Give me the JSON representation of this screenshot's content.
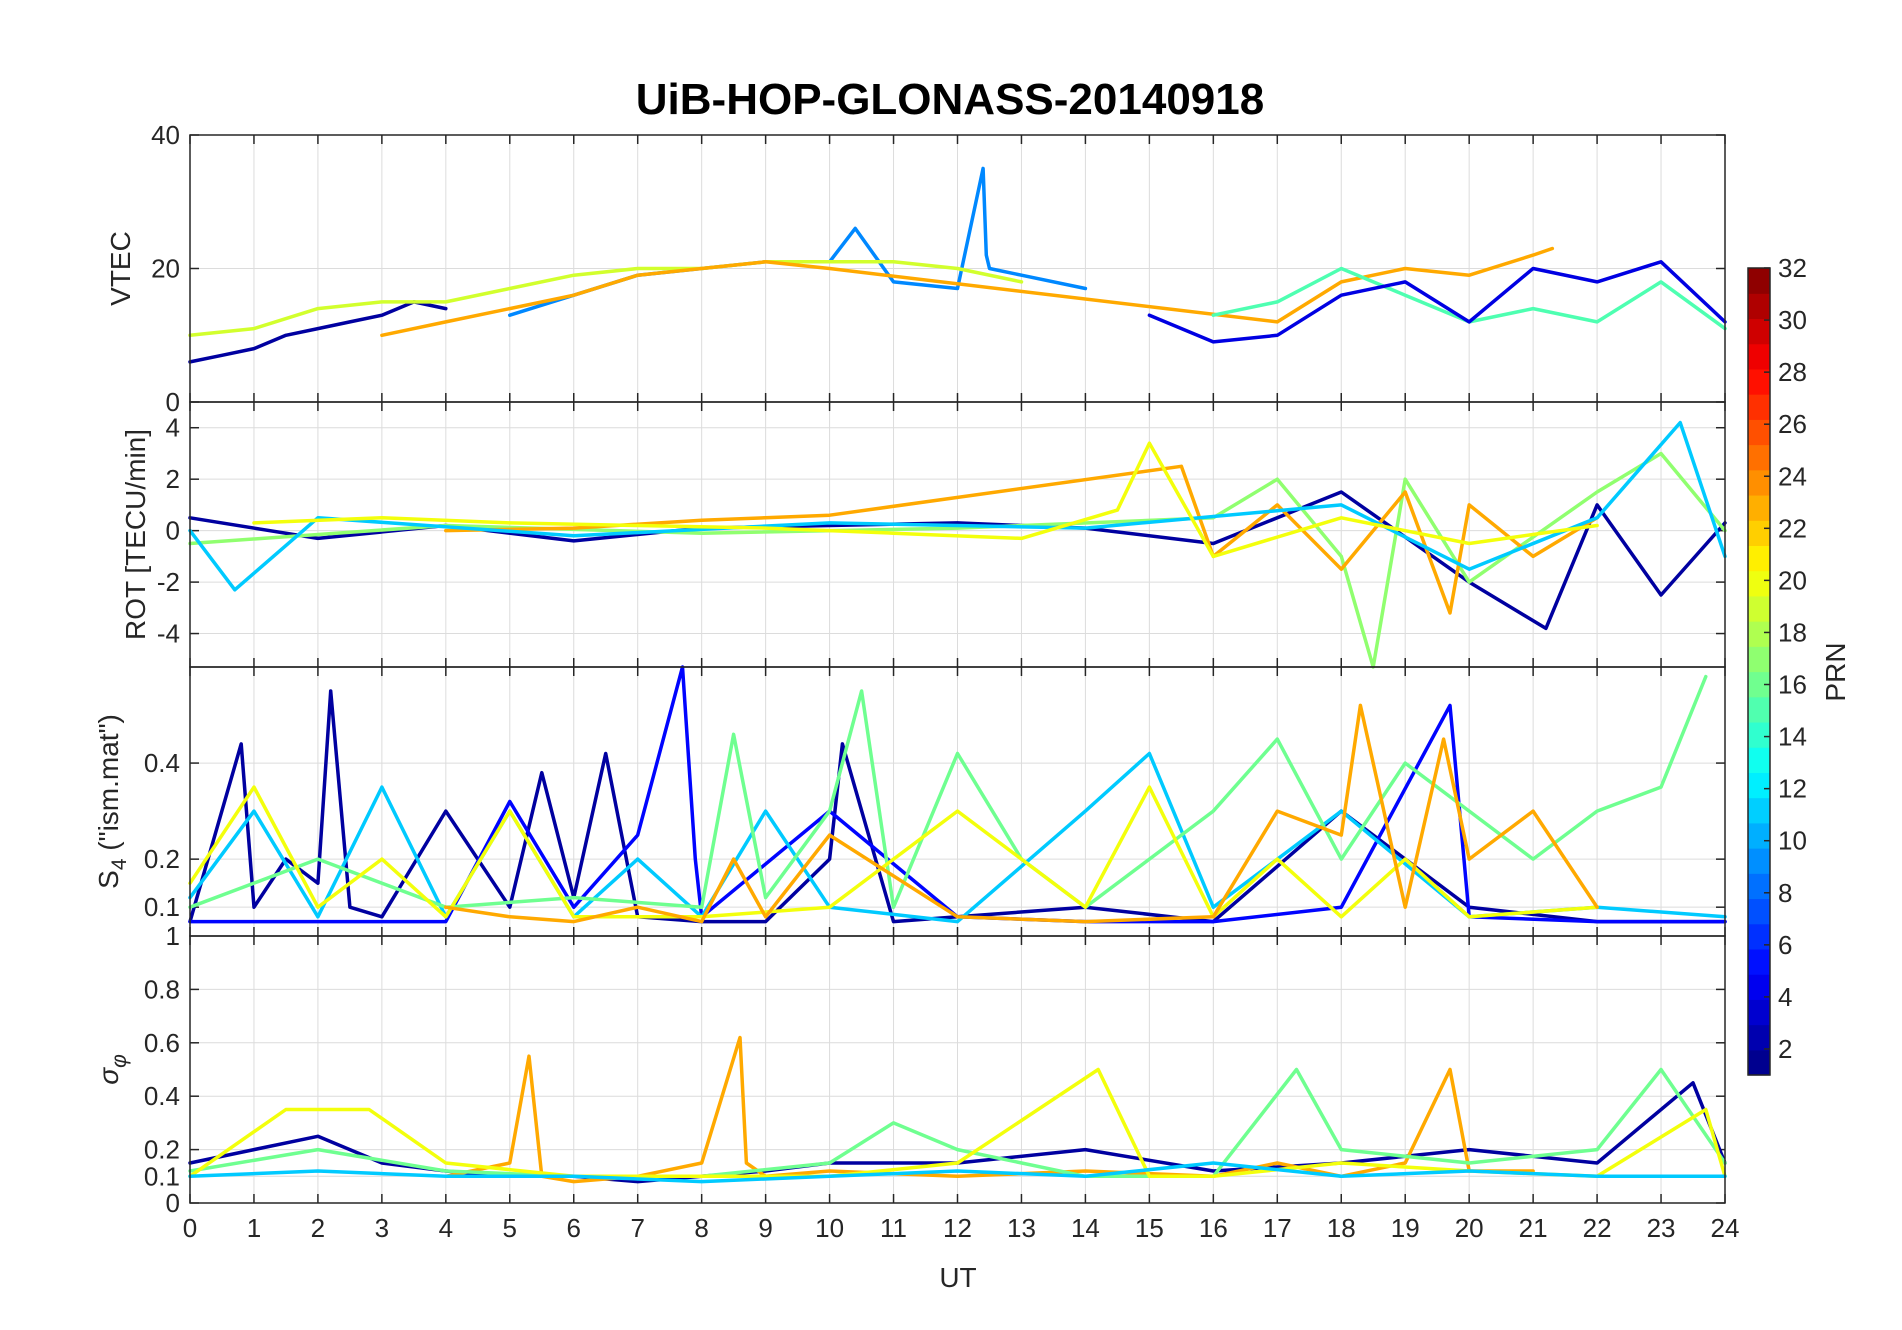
{
  "chart_data": [
    {
      "type": "line",
      "panel": "VTEC",
      "title": "UiB-HOP-GLONASS-20140918",
      "xlabel": "",
      "ylabel": "VTEC",
      "xlim": [
        0,
        24
      ],
      "ylim": [
        0,
        40
      ],
      "yticks": [
        0,
        20,
        40
      ],
      "xtick_labels": [],
      "series": [
        {
          "name": "PRN 2",
          "prn": 2,
          "x": [
            0,
            0.5,
            1,
            1.5,
            2,
            2.5,
            3,
            3.5,
            4
          ],
          "values": [
            6,
            7,
            8,
            10,
            11,
            12,
            13,
            15,
            14
          ]
        },
        {
          "name": "PRN 9",
          "prn": 9,
          "x": [
            5,
            6,
            7,
            8,
            9,
            10,
            10.4,
            11,
            12,
            12.4,
            12.45,
            12.5,
            13,
            14
          ],
          "values": [
            13,
            16,
            19,
            20,
            21,
            21,
            26,
            18,
            17,
            35,
            22,
            20,
            19,
            17
          ]
        },
        {
          "name": "PRN 19",
          "prn": 19,
          "x": [
            0,
            1,
            2,
            3,
            4,
            5,
            6,
            7,
            8,
            9,
            10,
            11,
            12,
            13
          ],
          "values": [
            10,
            11,
            14,
            15,
            15,
            17,
            19,
            20,
            20,
            21,
            21,
            21,
            20,
            18
          ]
        },
        {
          "name": "PRN 23",
          "prn": 23,
          "x": [
            3,
            4,
            5,
            6,
            7,
            8,
            9,
            10,
            17,
            18,
            19,
            20,
            21,
            21.3
          ],
          "values": [
            10,
            12,
            14,
            16,
            19,
            20,
            21,
            20,
            12,
            18,
            20,
            19,
            22,
            23
          ]
        },
        {
          "name": "PRN 15",
          "prn": 15,
          "x": [
            16,
            17,
            18,
            19,
            20,
            21,
            22,
            23,
            24
          ],
          "values": [
            13,
            15,
            20,
            16,
            12,
            14,
            12,
            18,
            11
          ]
        },
        {
          "name": "PRN 4",
          "prn": 4,
          "x": [
            15,
            16,
            17,
            18,
            19,
            20,
            21,
            22,
            23,
            24
          ],
          "values": [
            13,
            9,
            10,
            16,
            18,
            12,
            20,
            18,
            21,
            12
          ]
        }
      ]
    },
    {
      "type": "line",
      "panel": "ROT",
      "xlabel": "",
      "ylabel": "ROT [TECU/min]",
      "xlim": [
        0,
        24
      ],
      "ylim": [
        -5.3,
        5
      ],
      "yticks": [
        -4,
        -2,
        0,
        2,
        4
      ],
      "xtick_labels": [],
      "series": [
        {
          "name": "PRN 2",
          "prn": 2,
          "x": [
            0,
            2,
            4,
            6,
            8,
            10,
            12,
            14,
            16,
            18,
            20,
            21.2,
            22,
            23,
            24
          ],
          "values": [
            0.5,
            -0.3,
            0.2,
            -0.4,
            0.1,
            0.2,
            0.3,
            0.1,
            -0.5,
            1.5,
            -2,
            -3.8,
            1,
            -2.5,
            0.3
          ]
        },
        {
          "name": "PRN 17",
          "prn": 17,
          "x": [
            0,
            4,
            8,
            12,
            16,
            17,
            18,
            18.5,
            19,
            20,
            22,
            23,
            24
          ],
          "values": [
            -0.5,
            0.2,
            -0.1,
            0.1,
            0.5,
            2,
            -1,
            -5.3,
            2,
            -2,
            1.5,
            3,
            0
          ]
        },
        {
          "name": "PRN 23",
          "prn": 23,
          "x": [
            4,
            6,
            8,
            10,
            15.5,
            16,
            17,
            18,
            19,
            19.7,
            20,
            21,
            22
          ],
          "values": [
            0,
            0.1,
            0.4,
            0.6,
            2.5,
            -1,
            1,
            -1.5,
            1.5,
            -3.2,
            1,
            -1,
            0.5
          ]
        },
        {
          "name": "PRN 11",
          "prn": 11,
          "x": [
            0,
            0.7,
            2,
            6,
            10,
            14,
            18,
            20,
            22,
            23.3,
            24
          ],
          "values": [
            0,
            -2.3,
            0.5,
            -0.2,
            0.3,
            0.1,
            1,
            -1.5,
            0.5,
            4.2,
            -1
          ]
        },
        {
          "name": "PRN 20",
          "prn": 20,
          "x": [
            1,
            3,
            5,
            7,
            9,
            11,
            13,
            14.5,
            15,
            16,
            18,
            20,
            22
          ],
          "values": [
            0.3,
            0.5,
            0.3,
            0.2,
            0.1,
            -0.1,
            -0.3,
            0.8,
            3.4,
            -1,
            0.5,
            -0.5,
            0.2
          ]
        }
      ]
    },
    {
      "type": "line",
      "panel": "S4",
      "xlabel": "",
      "ylabel": "S4 (\"ism.mat\")",
      "ylabel_main": "S",
      "ylabel_sub": "4",
      "ylabel_rest": " (\"ism.mat\")",
      "xlim": [
        0,
        24
      ],
      "ylim": [
        0.04,
        0.6
      ],
      "yticks": [
        0.1,
        0.2,
        0.4
      ],
      "xtick_labels": [],
      "series": [
        {
          "name": "PRN 2",
          "prn": 2,
          "x": [
            0,
            0.8,
            1,
            1.5,
            2,
            2.2,
            2.5,
            3,
            4,
            5,
            5.5,
            6,
            6.5,
            7,
            8,
            9,
            10,
            10.2,
            11,
            12,
            14,
            16,
            18,
            20,
            22,
            24
          ],
          "values": [
            0.07,
            0.44,
            0.1,
            0.2,
            0.15,
            0.55,
            0.1,
            0.08,
            0.3,
            0.1,
            0.38,
            0.12,
            0.42,
            0.08,
            0.07,
            0.07,
            0.2,
            0.44,
            0.07,
            0.08,
            0.1,
            0.07,
            0.3,
            0.1,
            0.07,
            0.07
          ]
        },
        {
          "name": "PRN 5",
          "prn": 5,
          "x": [
            0,
            4,
            5,
            6,
            7,
            7.7,
            7.8,
            7.9,
            8,
            10,
            12,
            14,
            16,
            18,
            19.7,
            20,
            22,
            24
          ],
          "values": [
            0.07,
            0.07,
            0.32,
            0.1,
            0.25,
            0.6,
            0.4,
            0.2,
            0.08,
            0.3,
            0.08,
            0.07,
            0.07,
            0.1,
            0.52,
            0.08,
            0.07,
            0.07
          ]
        },
        {
          "name": "PRN 11",
          "prn": 11,
          "x": [
            0,
            1,
            2,
            3,
            4,
            5,
            6,
            7,
            8,
            9,
            10,
            12,
            14,
            15,
            16,
            18,
            20,
            22,
            24
          ],
          "values": [
            0.12,
            0.3,
            0.08,
            0.35,
            0.08,
            0.3,
            0.08,
            0.2,
            0.08,
            0.3,
            0.1,
            0.07,
            0.3,
            0.42,
            0.1,
            0.3,
            0.08,
            0.1,
            0.08
          ]
        },
        {
          "name": "PRN 16",
          "prn": 16,
          "x": [
            0,
            2,
            4,
            6,
            8,
            8.5,
            9,
            10,
            10.5,
            11,
            12,
            13,
            14,
            16,
            17,
            18,
            19,
            20,
            21,
            22,
            23,
            23.7
          ],
          "values": [
            0.1,
            0.2,
            0.1,
            0.12,
            0.1,
            0.46,
            0.12,
            0.3,
            0.55,
            0.1,
            0.42,
            0.2,
            0.1,
            0.3,
            0.45,
            0.2,
            0.4,
            0.3,
            0.2,
            0.3,
            0.35,
            0.58
          ]
        },
        {
          "name": "PRN 20",
          "prn": 20,
          "x": [
            0,
            1,
            2,
            3,
            4,
            5,
            6,
            8,
            10,
            12,
            14,
            15,
            16,
            17,
            18,
            19,
            20,
            22
          ],
          "values": [
            0.15,
            0.35,
            0.1,
            0.2,
            0.08,
            0.3,
            0.08,
            0.08,
            0.1,
            0.3,
            0.1,
            0.35,
            0.08,
            0.2,
            0.08,
            0.2,
            0.08,
            0.1
          ]
        },
        {
          "name": "PRN 23",
          "prn": 23,
          "x": [
            4,
            5,
            6,
            7,
            8,
            8.5,
            9,
            10,
            12,
            14,
            16,
            17,
            18,
            18.3,
            19,
            19.6,
            20,
            21,
            22
          ],
          "values": [
            0.1,
            0.08,
            0.07,
            0.1,
            0.07,
            0.2,
            0.08,
            0.25,
            0.08,
            0.07,
            0.08,
            0.3,
            0.25,
            0.52,
            0.1,
            0.45,
            0.2,
            0.3,
            0.1
          ]
        }
      ]
    },
    {
      "type": "line",
      "panel": "sigma_phi",
      "xlabel": "UT",
      "ylabel": "σφ",
      "ylabel_main": "σ",
      "ylabel_sub": "φ",
      "xlim": [
        0,
        24
      ],
      "ylim": [
        0,
        1
      ],
      "yticks": [
        0,
        0.1,
        0.2,
        0.4,
        0.6,
        0.8
      ],
      "ytick_labels": [
        "0",
        "0.1",
        "0.2",
        "0.4",
        "0.6",
        "0.8"
      ],
      "s4_panel_zero_label": "1",
      "xtick_labels": [
        "0",
        "1",
        "2",
        "3",
        "4",
        "5",
        "6",
        "7",
        "8",
        "9",
        "10",
        "11",
        "12",
        "13",
        "14",
        "15",
        "16",
        "17",
        "18",
        "19",
        "20",
        "21",
        "22",
        "23",
        "24"
      ],
      "series": [
        {
          "name": "PRN 2",
          "prn": 2,
          "x": [
            0,
            1,
            2,
            3,
            4,
            5,
            6,
            7,
            8,
            9,
            10,
            12,
            14,
            16,
            18,
            20,
            22,
            23.5,
            24
          ],
          "values": [
            0.15,
            0.2,
            0.25,
            0.15,
            0.12,
            0.1,
            0.1,
            0.08,
            0.1,
            0.12,
            0.15,
            0.15,
            0.2,
            0.12,
            0.15,
            0.2,
            0.15,
            0.45,
            0.15
          ]
        },
        {
          "name": "PRN 23",
          "prn": 23,
          "x": [
            4,
            5,
            5.3,
            5.5,
            6,
            7,
            8,
            8.6,
            8.7,
            9,
            10,
            12,
            14,
            16,
            17,
            18,
            19,
            19.7,
            20,
            21
          ],
          "values": [
            0.1,
            0.15,
            0.55,
            0.1,
            0.08,
            0.1,
            0.15,
            0.62,
            0.15,
            0.1,
            0.12,
            0.1,
            0.12,
            0.1,
            0.15,
            0.1,
            0.15,
            0.5,
            0.12,
            0.12
          ]
        },
        {
          "name": "PRN 16",
          "prn": 16,
          "x": [
            0,
            2,
            4,
            6,
            8,
            10,
            11,
            12,
            14,
            16,
            17.3,
            18,
            20,
            22,
            22.5,
            23,
            24
          ],
          "values": [
            0.12,
            0.2,
            0.12,
            0.1,
            0.1,
            0.15,
            0.3,
            0.2,
            0.1,
            0.1,
            0.5,
            0.2,
            0.15,
            0.2,
            0.35,
            0.5,
            0.15
          ]
        },
        {
          "name": "PRN 20",
          "prn": 20,
          "x": [
            0,
            1.5,
            2.8,
            4,
            6,
            8,
            10,
            12,
            14.2,
            15,
            16,
            18,
            20,
            22,
            23.7,
            24
          ],
          "values": [
            0.1,
            0.35,
            0.35,
            0.15,
            0.1,
            0.1,
            0.1,
            0.15,
            0.5,
            0.1,
            0.1,
            0.15,
            0.12,
            0.1,
            0.35,
            0.1
          ]
        },
        {
          "name": "PRN 11",
          "prn": 11,
          "x": [
            0,
            2,
            4,
            6,
            8,
            10,
            12,
            14,
            16,
            18,
            20,
            22,
            24
          ],
          "values": [
            0.1,
            0.12,
            0.1,
            0.1,
            0.08,
            0.1,
            0.12,
            0.1,
            0.15,
            0.1,
            0.12,
            0.1,
            0.1
          ]
        }
      ]
    }
  ],
  "colorbar": {
    "label": "PRN",
    "ticks": [
      "2",
      "4",
      "6",
      "8",
      "10",
      "12",
      "14",
      "16",
      "18",
      "20",
      "22",
      "24",
      "26",
      "28",
      "30",
      "32"
    ],
    "min": 1,
    "max": 32,
    "colormap": "jet"
  }
}
